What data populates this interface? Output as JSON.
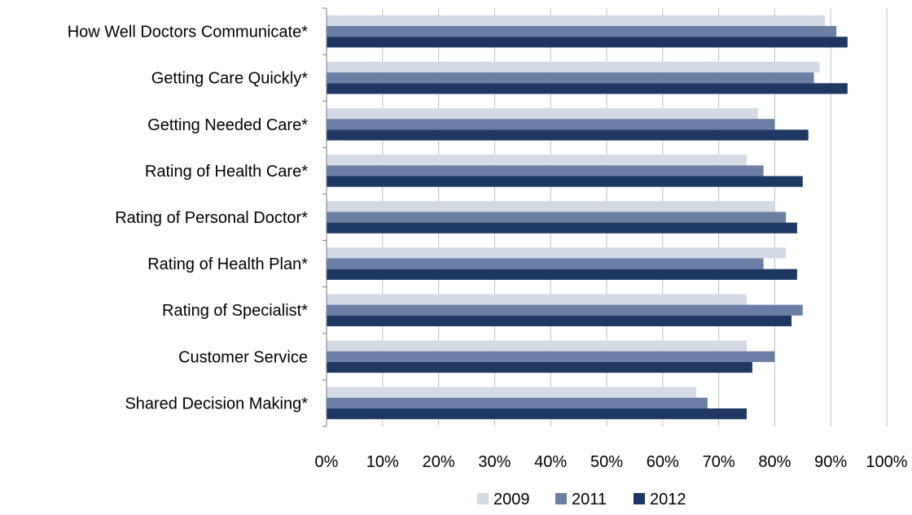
{
  "chart_data": {
    "type": "bar",
    "orientation": "horizontal",
    "categories": [
      "How Well Doctors Communicate*",
      "Getting Care Quickly*",
      "Getting Needed Care*",
      "Rating of Health Care*",
      "Rating of Personal Doctor*",
      "Rating of Health Plan*",
      "Rating of Specialist*",
      "Customer Service",
      "Shared Decision Making*"
    ],
    "series": [
      {
        "name": "2009",
        "color": "#d3d9e5",
        "values": [
          89,
          88,
          77,
          75,
          80,
          82,
          75,
          75,
          66
        ]
      },
      {
        "name": "2011",
        "color": "#6a7fa3",
        "values": [
          91,
          87,
          80,
          78,
          82,
          78,
          85,
          80,
          68
        ]
      },
      {
        "name": "2012",
        "color": "#1f3863",
        "values": [
          93,
          93,
          86,
          85,
          84,
          84,
          83,
          76,
          75
        ]
      }
    ],
    "xlim": [
      0,
      100
    ],
    "x_ticks": [
      "0%",
      "10%",
      "20%",
      "30%",
      "40%",
      "50%",
      "60%",
      "70%",
      "80%",
      "90%",
      "100%"
    ],
    "grid": true,
    "legend_position": "bottom",
    "title": "",
    "xlabel": "",
    "ylabel": ""
  }
}
